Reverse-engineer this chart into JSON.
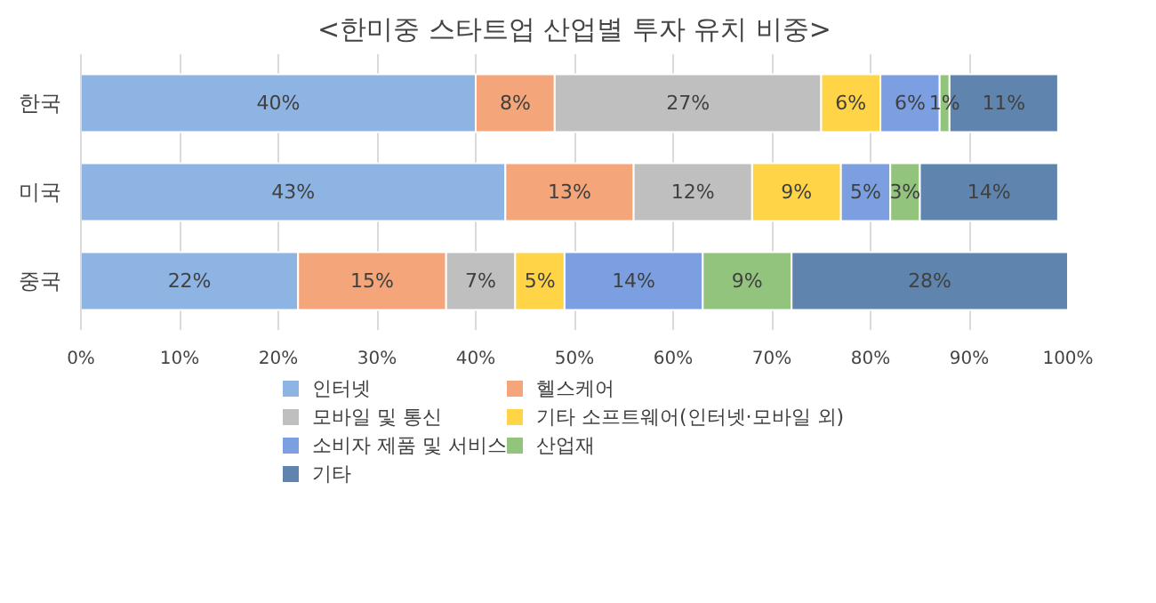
{
  "chart_data": {
    "type": "bar",
    "orientation": "horizontal",
    "stacked": true,
    "title": "<한미중 스타트업 산업별 투자 유치 비중>",
    "categories": [
      "한국",
      "미국",
      "중국"
    ],
    "xlim": [
      0,
      100
    ],
    "xticks": [
      {
        "value": 0,
        "label": "0%"
      },
      {
        "value": 10,
        "label": "10%"
      },
      {
        "value": 20,
        "label": "20%"
      },
      {
        "value": 30,
        "label": "30%"
      },
      {
        "value": 40,
        "label": "40%"
      },
      {
        "value": 50,
        "label": "50%"
      },
      {
        "value": 60,
        "label": "60%"
      },
      {
        "value": 70,
        "label": "70%"
      },
      {
        "value": 80,
        "label": "80%"
      },
      {
        "value": 90,
        "label": "90%"
      },
      {
        "value": 100,
        "label": "100%"
      }
    ],
    "grid": "x",
    "legend": "bottom",
    "series": [
      {
        "name": "인터넷",
        "color": "#8eb4e3",
        "values": [
          40,
          43,
          22
        ],
        "value_labels": [
          "40%",
          "43%",
          "22%"
        ]
      },
      {
        "name": "헬스케어",
        "color": "#f4a67a",
        "values": [
          8,
          13,
          15
        ],
        "value_labels": [
          "8%",
          "13%",
          "15%"
        ]
      },
      {
        "name": "모바일 및 통신",
        "color": "#bfbfbf",
        "values": [
          27,
          12,
          7
        ],
        "value_labels": [
          "27%",
          "12%",
          "7%"
        ]
      },
      {
        "name": "기타 소프트웨어(인터넷·모바일 외)",
        "color": "#ffd447",
        "values": [
          6,
          9,
          5
        ],
        "value_labels": [
          "6%",
          "9%",
          "5%"
        ]
      },
      {
        "name": "소비자 제품 및 서비스",
        "color": "#7b9fe0",
        "values": [
          6,
          5,
          14
        ],
        "value_labels": [
          "6%",
          "5%",
          "14%"
        ]
      },
      {
        "name": "산업재",
        "color": "#93c47d",
        "values": [
          1,
          3,
          9
        ],
        "value_labels": [
          "1%",
          "3%",
          "9%"
        ]
      },
      {
        "name": "기타",
        "color": "#5f85ae",
        "values": [
          11,
          14,
          28
        ],
        "value_labels": [
          "11%",
          "14%",
          "28%"
        ]
      }
    ]
  }
}
